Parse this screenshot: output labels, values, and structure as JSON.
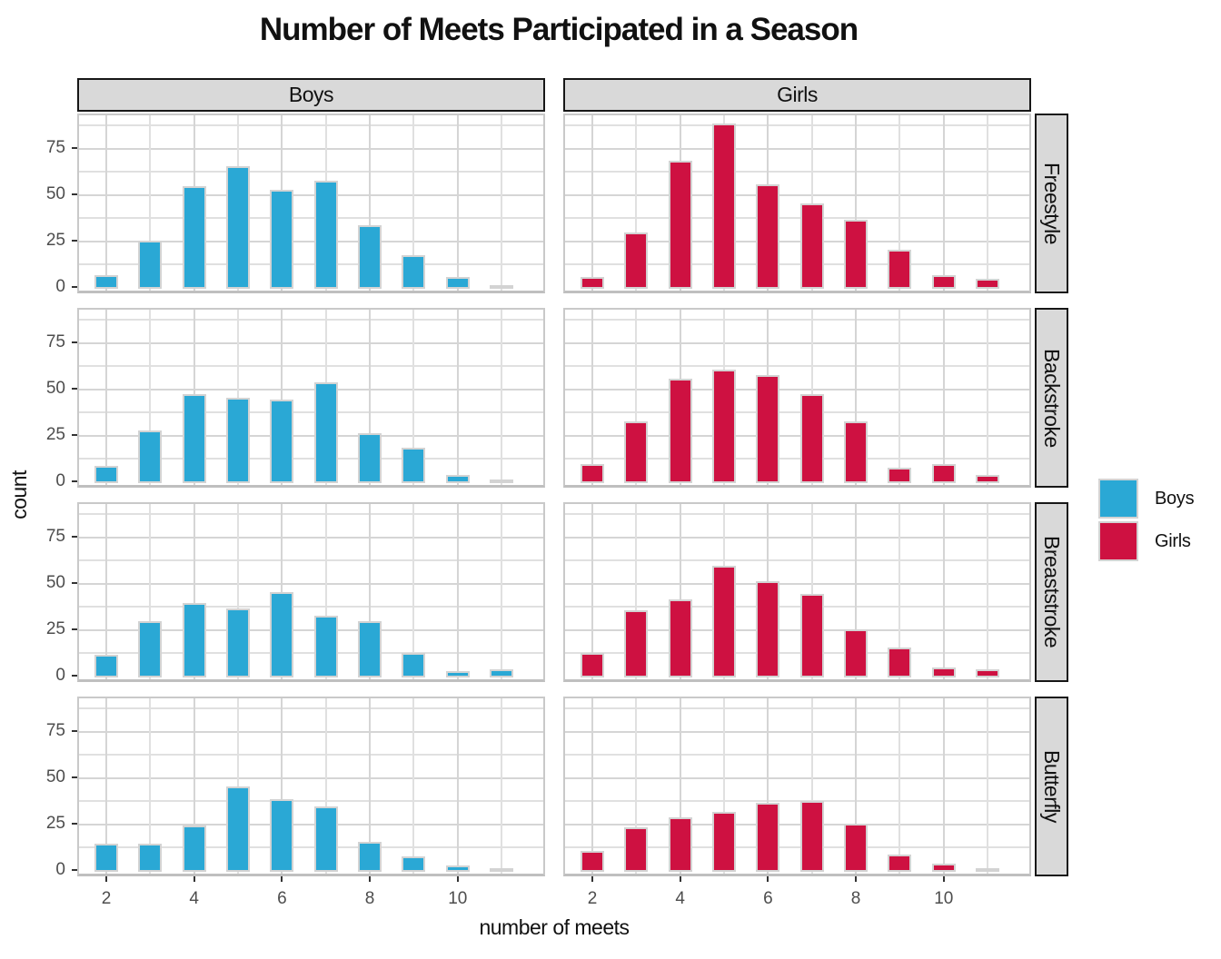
{
  "title": "Number of Meets Participated in a Season",
  "axes": {
    "x_label": "number of meets",
    "y_label": "count",
    "x_ticks": [
      2,
      4,
      6,
      8,
      10
    ],
    "y_ticks": [
      0,
      25,
      50,
      75
    ]
  },
  "legend": {
    "items": [
      {
        "label": "Boys",
        "color": "#2AA8D5"
      },
      {
        "label": "Girls",
        "color": "#CE1141"
      }
    ]
  },
  "colors": {
    "boys_fill": "#2AA8D5",
    "girls_fill": "#CE1141",
    "bar_stroke": "#D3D3D3",
    "strip_background": "#D9D9D9",
    "gridline": "#DDDDDD",
    "tick_text": "#4D4D4D"
  },
  "chart_data": {
    "type": "bar",
    "title": "Number of Meets Participated in a Season",
    "xlabel": "number of meets",
    "ylabel": "count",
    "x": [
      2,
      3,
      4,
      5,
      6,
      7,
      8,
      9,
      10,
      11
    ],
    "ylim": [
      0,
      92
    ],
    "y_breaks": [
      0,
      25,
      50,
      75
    ],
    "minor_y_step": 12.5,
    "grid": true,
    "legend_position": "right",
    "facet_columns": [
      "Boys",
      "Girls"
    ],
    "facet_rows": [
      "Freestyle",
      "Backstroke",
      "Breaststroke",
      "Butterfly"
    ],
    "series": [
      {
        "facet_row": "Freestyle",
        "facet_col": "Boys",
        "values": [
          6,
          25,
          54,
          65,
          52,
          57,
          33,
          17,
          5,
          1
        ]
      },
      {
        "facet_row": "Freestyle",
        "facet_col": "Girls",
        "values": [
          5,
          29,
          68,
          88,
          55,
          45,
          36,
          20,
          6,
          4
        ]
      },
      {
        "facet_row": "Backstroke",
        "facet_col": "Boys",
        "values": [
          8,
          27,
          47,
          45,
          44,
          53,
          26,
          18,
          3,
          1
        ]
      },
      {
        "facet_row": "Backstroke",
        "facet_col": "Girls",
        "values": [
          9,
          32,
          55,
          60,
          57,
          47,
          32,
          7,
          9,
          3
        ]
      },
      {
        "facet_row": "Breaststroke",
        "facet_col": "Boys",
        "values": [
          11,
          29,
          39,
          36,
          45,
          32,
          29,
          12,
          2,
          3
        ]
      },
      {
        "facet_row": "Breaststroke",
        "facet_col": "Girls",
        "values": [
          12,
          35,
          41,
          59,
          51,
          44,
          25,
          15,
          4,
          3
        ]
      },
      {
        "facet_row": "Butterfly",
        "facet_col": "Boys",
        "values": [
          14,
          14,
          24,
          45,
          38,
          34,
          15,
          7,
          2,
          1
        ]
      },
      {
        "facet_row": "Butterfly",
        "facet_col": "Girls",
        "values": [
          10,
          23,
          28,
          31,
          36,
          37,
          25,
          8,
          3,
          1
        ]
      }
    ]
  }
}
